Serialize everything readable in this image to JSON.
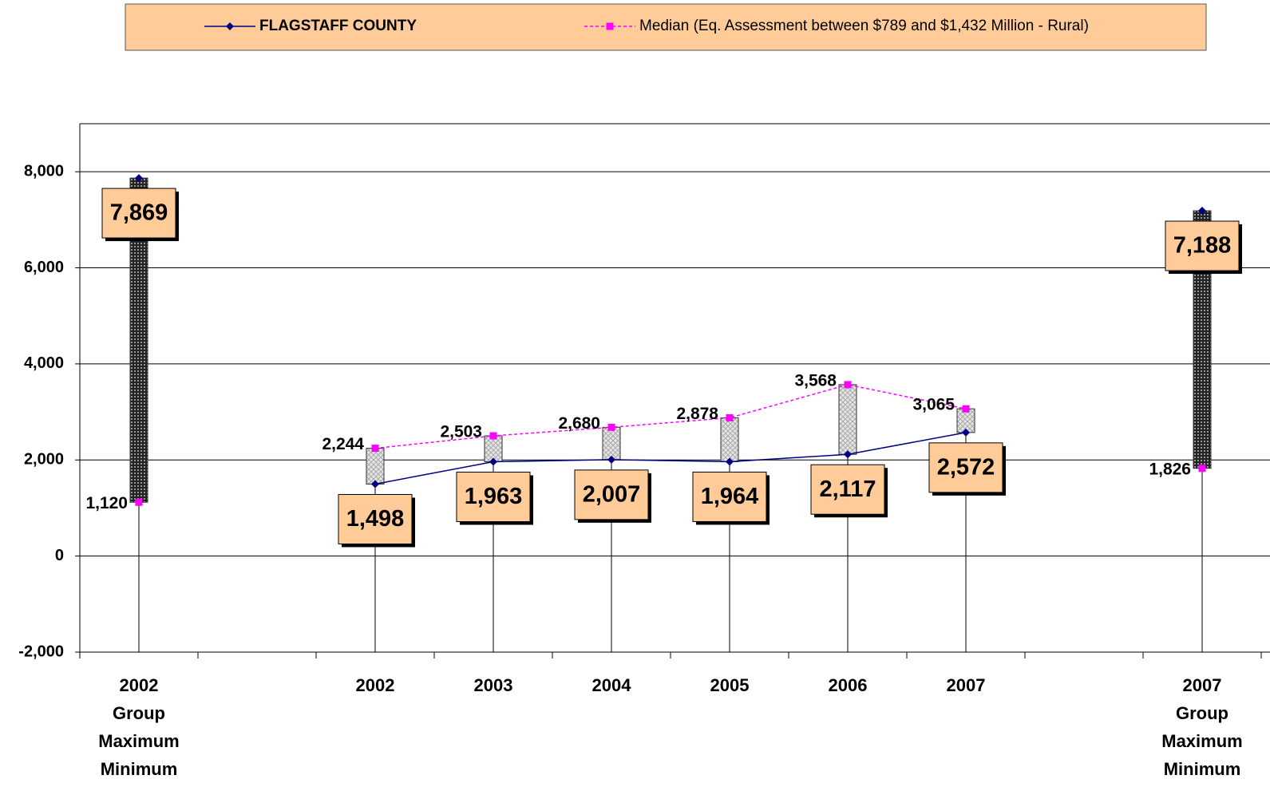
{
  "chart_data": {
    "type": "line",
    "categories": [
      "2002\nGroup\nMaximum\nMinimum",
      null,
      "2002",
      "2003",
      "2004",
      "2005",
      "2006",
      "2007",
      null,
      "2007\nGroup\nMaximum\nMinimum"
    ],
    "series": [
      {
        "name": "FLAGSTAFF COUNTY",
        "color": "#000080",
        "values": [
          7869,
          null,
          1498,
          1963,
          2007,
          1964,
          2117,
          2572,
          null,
          7188
        ],
        "value_labels": [
          "7,869",
          null,
          "1,498",
          "1,963",
          "2,007",
          "1,964",
          "2,117",
          "2,572",
          null,
          "7,188"
        ]
      },
      {
        "name": "Median (Eq. Assessment between $789 and $1,432 Million - Rural)",
        "color": "#FF00FF",
        "values": [
          1120,
          null,
          2244,
          2503,
          2680,
          2878,
          3568,
          3065,
          null,
          1826
        ],
        "value_labels": [
          "1,120",
          null,
          "2,244",
          "2,503",
          "2,680",
          "2,878",
          "3,568",
          "3,065",
          null,
          "1,826"
        ]
      }
    ],
    "ylim": [
      -2000,
      9000
    ],
    "yticks": [
      {
        "value": -2000,
        "label": "-2,000"
      },
      0,
      {
        "value": 2000,
        "label": "2,000"
      },
      {
        "value": 4000,
        "label": "4,000"
      },
      {
        "value": 6000,
        "label": "6,000"
      },
      {
        "value": 8000,
        "label": "8,000"
      }
    ],
    "grid": true
  }
}
